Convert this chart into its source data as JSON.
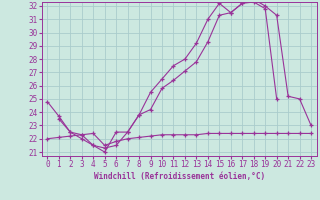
{
  "bg_color": "#cce8e0",
  "grid_color": "#aacccc",
  "line_color": "#993399",
  "xlim": [
    -0.5,
    23.5
  ],
  "ylim": [
    20.7,
    32.3
  ],
  "xticks": [
    0,
    1,
    2,
    3,
    4,
    5,
    6,
    7,
    8,
    9,
    10,
    11,
    12,
    13,
    14,
    15,
    16,
    17,
    18,
    19,
    20,
    21,
    22,
    23
  ],
  "yticks": [
    21,
    22,
    23,
    24,
    25,
    26,
    27,
    28,
    29,
    30,
    31,
    32
  ],
  "xlabel": "Windchill (Refroidissement éolien,°C)",
  "line1_x": [
    0,
    1,
    2,
    3,
    4,
    5,
    6,
    7,
    8,
    9,
    10,
    11,
    12,
    13,
    14,
    15,
    16,
    17,
    18,
    19,
    20
  ],
  "line1_y": [
    24.8,
    23.7,
    22.5,
    22.3,
    21.5,
    21.0,
    22.5,
    22.5,
    23.8,
    24.2,
    25.8,
    26.4,
    27.1,
    27.8,
    29.3,
    31.3,
    31.5,
    32.2,
    32.3,
    31.8,
    25.0
  ],
  "line2_x": [
    1,
    2,
    3,
    4,
    5,
    6,
    7,
    8,
    9,
    10,
    11,
    12,
    13,
    14,
    15,
    16,
    17,
    18,
    19,
    20,
    21,
    22,
    23
  ],
  "line2_y": [
    23.5,
    22.5,
    22.0,
    21.5,
    21.3,
    21.5,
    22.5,
    23.8,
    25.5,
    26.5,
    27.5,
    28.0,
    29.2,
    31.0,
    32.2,
    31.5,
    32.2,
    32.5,
    32.0,
    31.3,
    25.2,
    25.0,
    23.0
  ],
  "line3_x": [
    0,
    1,
    2,
    3,
    4,
    5,
    6,
    7,
    8,
    9,
    10,
    11,
    12,
    13,
    14,
    15,
    16,
    17,
    18,
    19,
    20,
    21,
    22,
    23
  ],
  "line3_y": [
    22.0,
    22.1,
    22.2,
    22.3,
    22.4,
    21.5,
    21.8,
    22.0,
    22.1,
    22.2,
    22.3,
    22.3,
    22.3,
    22.3,
    22.4,
    22.4,
    22.4,
    22.4,
    22.4,
    22.4,
    22.4,
    22.4,
    22.4,
    22.4
  ],
  "tick_fontsize": 5.5,
  "xlabel_fontsize": 5.5
}
